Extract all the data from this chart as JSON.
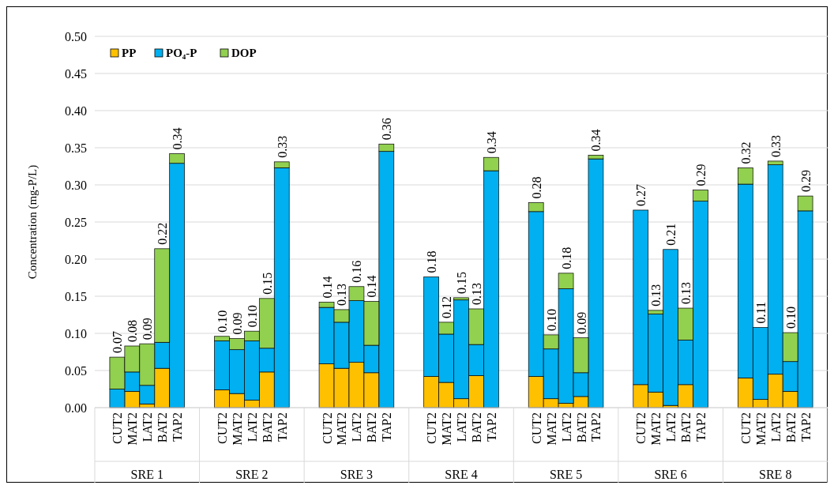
{
  "chart_data": {
    "type": "bar",
    "stacked": true,
    "ylabel": "Concentration (mg-P/L)",
    "categories": [
      "CUT2",
      "MAT2",
      "LAT2",
      "BAT2",
      "TAP2",
      "CUT2",
      "MAT2",
      "LAT2",
      "BAT2",
      "TAP2",
      "CUT2",
      "MAT2",
      "LAT2",
      "BAT2",
      "TAP2",
      "CUT2",
      "MAT2",
      "LAT2",
      "BAT2",
      "TAP2",
      "CUT2",
      "MAT2",
      "LAT2",
      "BAT2",
      "TAP2",
      "CUT2",
      "MAT2",
      "LAT2",
      "BAT2",
      "TAP2",
      "CUT2",
      "MAT2",
      "LAT2",
      "BAT2",
      "TAP2"
    ],
    "annotations": [
      "SRE 1",
      "SRE 2",
      "SRE 3",
      "SRE 4",
      "SRE 5",
      "SRE 6",
      "SRE 8"
    ],
    "series": [
      {
        "name": "PP",
        "color": "#ffc000",
        "values": [
          0,
          0.022,
          0.005,
          0.053,
          0,
          0.024,
          0.019,
          0.01,
          0.048,
          0,
          0.059,
          0.053,
          0.061,
          0.047,
          0,
          0.042,
          0.034,
          0.012,
          0.043,
          0,
          0.042,
          0.012,
          0.006,
          0.015,
          0,
          0.031,
          0.021,
          0.003,
          0.031,
          0,
          0.04,
          0.011,
          0.045,
          0.022,
          0
        ]
      },
      {
        "name": "PO₄-P",
        "color": "#00b0f0",
        "values": [
          0.025,
          0.026,
          0.025,
          0.035,
          0.329,
          0.066,
          0.059,
          0.08,
          0.032,
          0.323,
          0.076,
          0.062,
          0.083,
          0.037,
          0.345,
          0.134,
          0.065,
          0.133,
          0.042,
          0.319,
          0.222,
          0.067,
          0.154,
          0.032,
          0.335,
          0.235,
          0.105,
          0.21,
          0.06,
          0.278,
          0.261,
          0.097,
          0.282,
          0.04,
          0.265
        ]
      },
      {
        "name": "DOP",
        "color": "#92d050",
        "values": [
          0.043,
          0.035,
          0.056,
          0.126,
          0.013,
          0.006,
          0.015,
          0.013,
          0.067,
          0.008,
          0.007,
          0.017,
          0.019,
          0.059,
          0.01,
          0,
          0.016,
          0.003,
          0.048,
          0.018,
          0.012,
          0.019,
          0.021,
          0.047,
          0.005,
          0,
          0.005,
          0,
          0.043,
          0.015,
          0.022,
          0,
          0.005,
          0.039,
          0.02
        ]
      }
    ],
    "totals": [
      "0.07",
      "0.08",
      "0.09",
      "0.22",
      "0.34",
      "0.10",
      "0.09",
      "0.10",
      "0.15",
      "0.33",
      "0.14",
      "0.13",
      "0.16",
      "0.14",
      "0.36",
      "0.18",
      "0.12",
      "0.15",
      "0.13",
      "0.34",
      "0.28",
      "0.10",
      "0.18",
      "0.09",
      "0.34",
      "0.27",
      "0.13",
      "0.21",
      "0.13",
      "0.29",
      "0.32",
      "0.11",
      "0.33",
      "0.10",
      "0.29"
    ],
    "ylim": [
      0,
      0.5
    ],
    "yticks": [
      {
        "value": 0,
        "label": "0.00"
      },
      {
        "value": 0.05,
        "label": "0.05"
      },
      {
        "value": 0.1,
        "label": "0.10"
      },
      {
        "value": 0.15,
        "label": "0.15"
      },
      {
        "value": 0.2,
        "label": "0.20"
      },
      {
        "value": 0.25,
        "label": "0.25"
      },
      {
        "value": 0.3,
        "label": "0.30"
      },
      {
        "value": 0.35,
        "label": "0.35"
      },
      {
        "value": 0.4,
        "label": "0.40"
      },
      {
        "value": 0.45,
        "label": "0.45"
      },
      {
        "value": 0.5,
        "label": "0.50"
      }
    ],
    "grid": "y",
    "legend": "top left"
  }
}
